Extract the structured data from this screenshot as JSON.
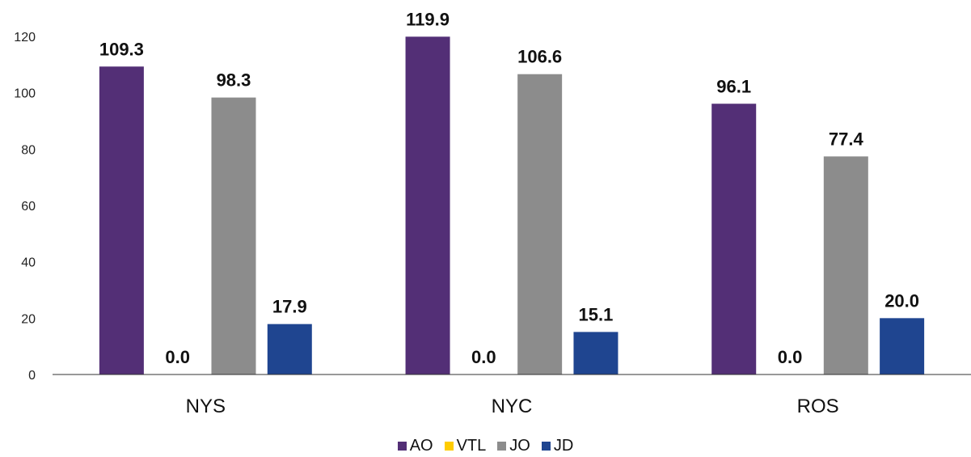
{
  "chart_data": {
    "type": "bar",
    "categories": [
      "NYS",
      "NYC",
      "ROS"
    ],
    "series": [
      {
        "name": "AO",
        "values": [
          109.3,
          119.9,
          96.1
        ],
        "color": "#532f76"
      },
      {
        "name": "VTL",
        "values": [
          0.0,
          0.0,
          0.0
        ],
        "color": "#ffcc00"
      },
      {
        "name": "JO",
        "values": [
          98.3,
          106.6,
          77.4
        ],
        "color": "#8c8c8c"
      },
      {
        "name": "JD",
        "values": [
          17.9,
          15.1,
          20.0
        ],
        "color": "#1f4590"
      }
    ],
    "ylim": [
      0,
      120
    ],
    "yticks": [
      0,
      20,
      40,
      60,
      80,
      100,
      120
    ],
    "title": "",
    "xlabel": "",
    "ylabel": "",
    "grid": false,
    "legend": "bottom-center",
    "data_label_format": "one-decimal"
  }
}
